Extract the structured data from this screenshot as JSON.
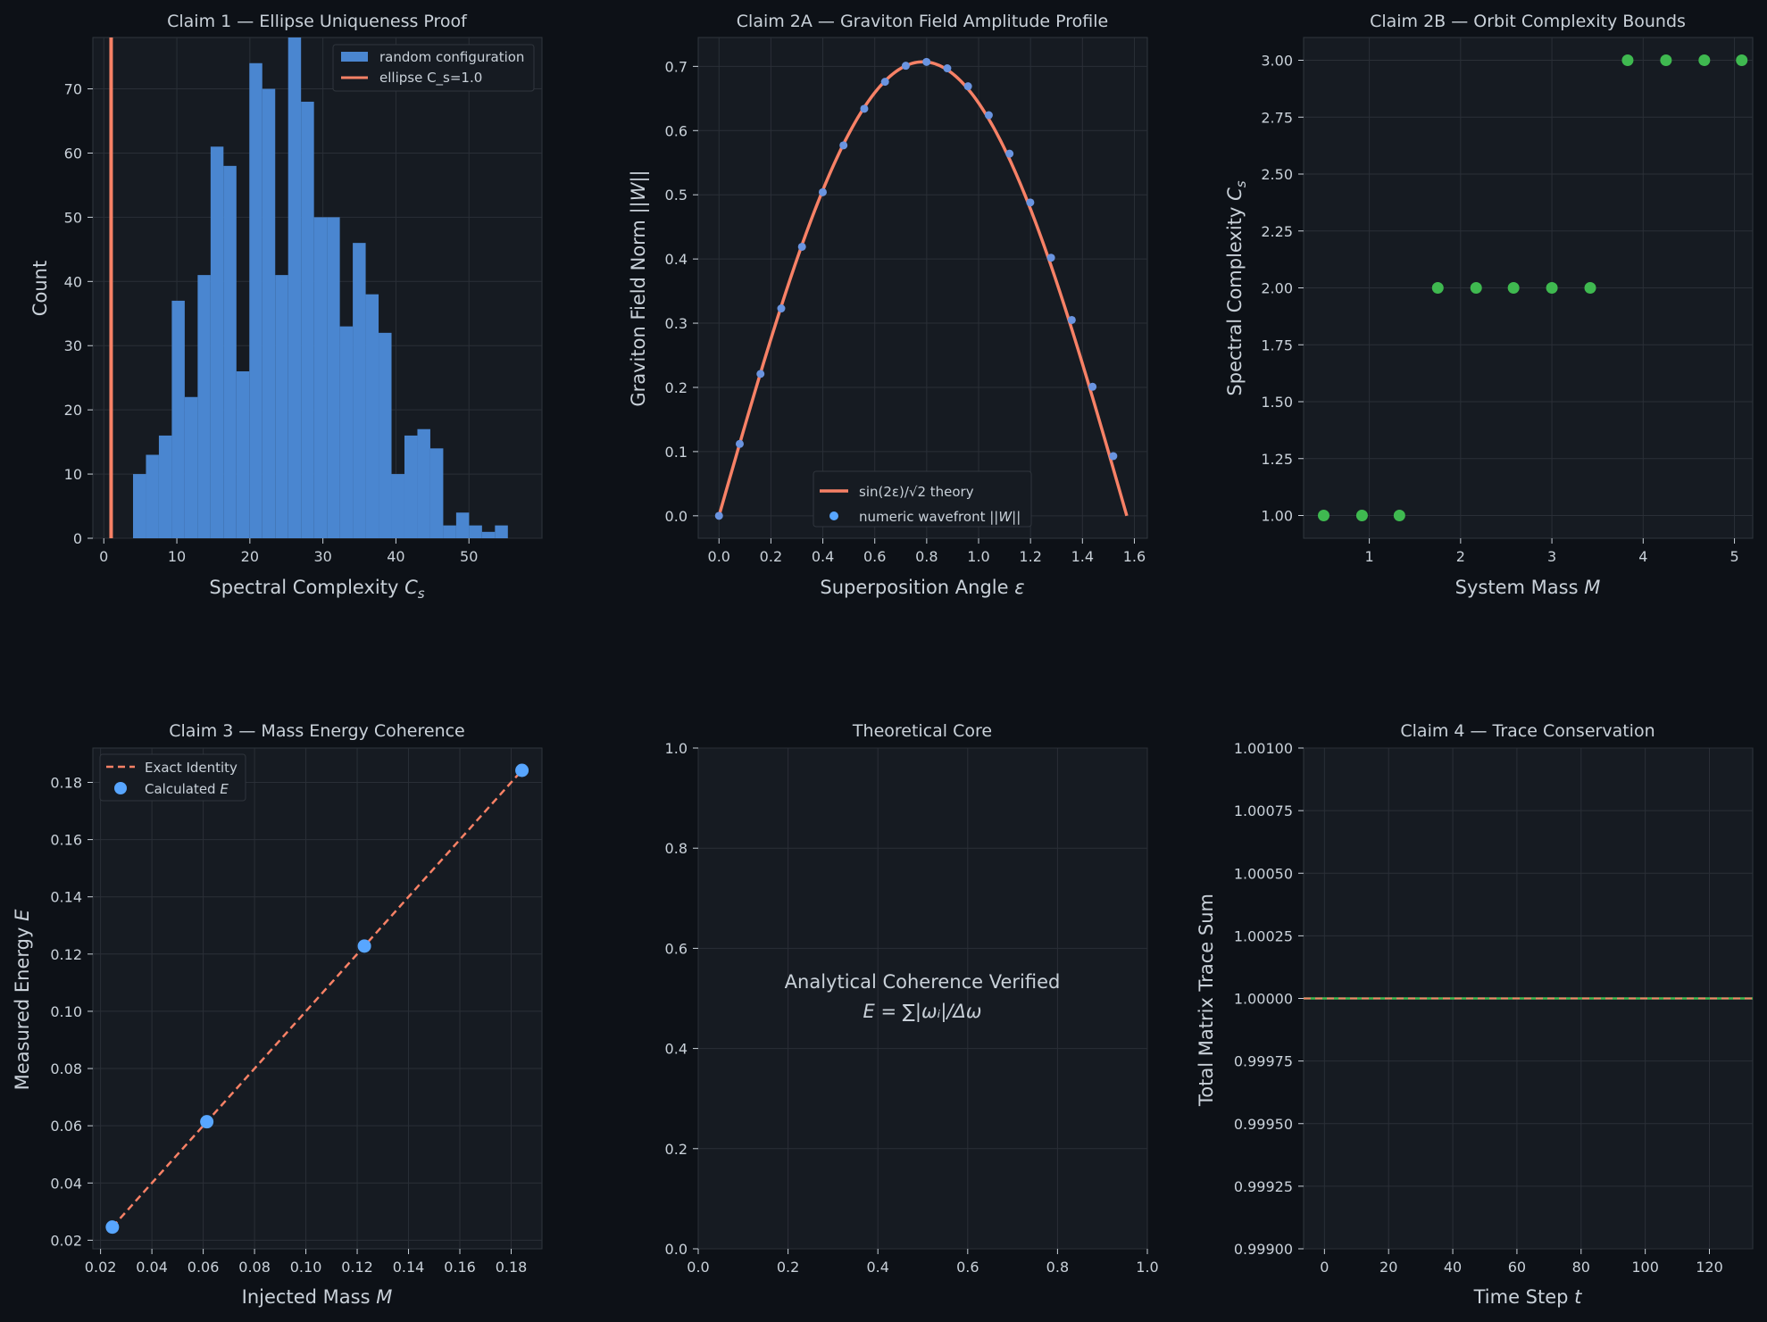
{
  "colors": {
    "figure_bg": "#0d1117",
    "axes_bg": "#161b22",
    "spine": "#30363d",
    "grid": "#2a2f37",
    "text": "#c9d1d9",
    "blue": "#4a86d0",
    "orange": "#f78166",
    "green": "#3fb950",
    "point_blue": "#58a6ff"
  },
  "chart_data": [
    {
      "type": "bar",
      "title": "Claim 1 — Ellipse Uniqueness Proof",
      "xlabel": "Spectral Complexity C_s",
      "ylabel": "Count",
      "xlim": [
        -1.5,
        60
      ],
      "ylim": [
        0,
        78
      ],
      "xticks": [
        0,
        10,
        20,
        30,
        40,
        50
      ],
      "yticks": [
        0,
        10,
        20,
        30,
        40,
        50,
        60,
        70
      ],
      "grid": true,
      "legend_position": "top-right",
      "histogram": {
        "name": "random configuration",
        "bin_start": 4,
        "bin_width": 1.77,
        "counts": [
          10,
          13,
          16,
          37,
          22,
          41,
          61,
          58,
          26,
          74,
          70,
          41,
          78,
          68,
          50,
          50,
          33,
          46,
          38,
          32,
          10,
          16,
          17,
          14,
          2,
          4,
          2,
          1,
          2
        ]
      },
      "reference_line": {
        "name": "ellipse C_s=1.0",
        "x": 1.0
      }
    },
    {
      "type": "line",
      "title": "Claim 2A — Graviton Field Amplitude Profile",
      "xlabel": "Superposition Angle ε",
      "ylabel": "Graviton Field Norm ||W||",
      "xlim": [
        -0.08,
        1.65
      ],
      "ylim": [
        -0.035,
        0.745
      ],
      "xticks": [
        "0.0",
        "0.2",
        "0.4",
        "0.6",
        "0.8",
        "1.0",
        "1.2",
        "1.4",
        "1.6"
      ],
      "yticks": [
        "0.0",
        "0.1",
        "0.2",
        "0.3",
        "0.4",
        "0.5",
        "0.6",
        "0.7"
      ],
      "grid": true,
      "legend_position": "bottom-center",
      "series": [
        {
          "name": "sin(2ε)/√2 theory",
          "kind": "line",
          "function": "sin(2x)/sqrt(2)",
          "x_range": [
            0,
            1.5708
          ]
        },
        {
          "name": "numeric wavefront ||W||",
          "kind": "scatter",
          "x": [
            0,
            0.0799,
            0.1599,
            0.2398,
            0.3197,
            0.3997,
            0.4796,
            0.5596,
            0.6395,
            0.7194,
            0.7994,
            0.8793,
            0.9592,
            1.0392,
            1.1191,
            1.199,
            1.279,
            1.3589,
            1.4389,
            1.5188
          ],
          "y": [
            0,
            0.112,
            0.221,
            0.323,
            0.419,
            0.504,
            0.577,
            0.634,
            0.676,
            0.701,
            0.707,
            0.697,
            0.669,
            0.624,
            0.564,
            0.488,
            0.402,
            0.305,
            0.201,
            0.093
          ]
        }
      ]
    },
    {
      "type": "scatter",
      "title": "Claim 2B — Orbit Complexity Bounds",
      "xlabel": "System Mass M",
      "ylabel": "Spectral Complexity C_s",
      "xlim": [
        0.28,
        5.2
      ],
      "ylim": [
        0.9,
        3.1
      ],
      "xticks": [
        1,
        2,
        3,
        4,
        5
      ],
      "yticks": [
        "1.00",
        "1.25",
        "1.50",
        "1.75",
        "2.00",
        "2.25",
        "2.50",
        "2.75",
        "3.00"
      ],
      "grid": true,
      "series": [
        {
          "x": [
            0.5,
            0.92,
            1.33,
            1.75,
            2.17,
            2.58,
            3.0,
            3.42,
            3.83,
            4.25,
            4.67,
            5.08
          ],
          "y": [
            1,
            1,
            1,
            2,
            2,
            2,
            2,
            2,
            3,
            3,
            3,
            3
          ]
        }
      ]
    },
    {
      "type": "line",
      "title": "Claim 3 — Mass Energy Coherence",
      "xlabel": "Injected Mass M",
      "ylabel": "Measured Energy E",
      "xlim": [
        0.017,
        0.192
      ],
      "ylim": [
        0.017,
        0.192
      ],
      "xticks": [
        "0.02",
        "0.04",
        "0.06",
        "0.08",
        "0.10",
        "0.12",
        "0.14",
        "0.16",
        "0.18"
      ],
      "yticks": [
        "0.02",
        "0.04",
        "0.06",
        "0.08",
        "0.10",
        "0.12",
        "0.14",
        "0.16",
        "0.18"
      ],
      "grid": true,
      "legend_position": "top-left",
      "series": [
        {
          "name": "Exact Identity",
          "kind": "dashed-line",
          "x": [
            0.0246,
            0.1842
          ],
          "y": [
            0.0246,
            0.1842
          ]
        },
        {
          "name": "Calculated E",
          "kind": "scatter",
          "x": [
            0.0246,
            0.0614,
            0.1228,
            0.1842
          ],
          "y": [
            0.0246,
            0.0614,
            0.1228,
            0.1842
          ]
        }
      ]
    },
    {
      "type": "table",
      "title": "Theoretical Core",
      "xlim": [
        0,
        1
      ],
      "ylim": [
        0,
        1
      ],
      "xticks": [
        "0.0",
        "0.2",
        "0.4",
        "0.6",
        "0.8",
        "1.0"
      ],
      "yticks": [
        "0.0",
        "0.2",
        "0.4",
        "0.6",
        "0.8",
        "1.0"
      ],
      "grid": true,
      "annotation_line1": "Analytical Coherence Verified",
      "annotation_line2": "E = ∑|ωᵢ|/Δω"
    },
    {
      "type": "line",
      "title": "Claim 4 — Trace Conservation",
      "xlabel": "Time Step t",
      "ylabel": "Total Matrix Trace Sum",
      "xlim": [
        -6.5,
        133.5
      ],
      "ylim": [
        0.999,
        1.001
      ],
      "xticks": [
        0,
        20,
        40,
        60,
        80,
        100,
        120
      ],
      "yticks": [
        "0.99900",
        "0.99925",
        "0.99950",
        "0.99975",
        "1.00000",
        "1.00025",
        "1.00050",
        "1.00075",
        "1.00100"
      ],
      "grid": true,
      "series": [
        {
          "kind": "line",
          "x": [
            -6.5,
            133.5
          ],
          "y": [
            1.0,
            1.0
          ]
        }
      ]
    }
  ]
}
